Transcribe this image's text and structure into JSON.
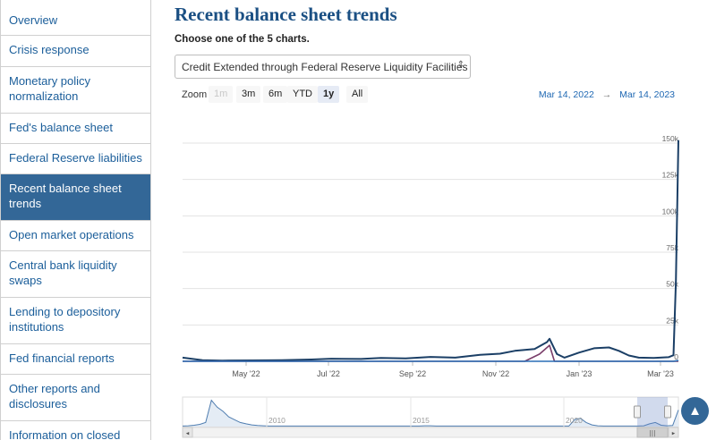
{
  "sidebar": {
    "items": [
      {
        "label": "Overview",
        "active": false
      },
      {
        "label": "Crisis response",
        "active": false
      },
      {
        "label": "Monetary policy normalization",
        "active": false
      },
      {
        "label": "Fed's balance sheet",
        "active": false
      },
      {
        "label": "Federal Reserve liabilities",
        "active": false
      },
      {
        "label": "Recent balance sheet trends",
        "active": true
      },
      {
        "label": "Open market operations",
        "active": false
      },
      {
        "label": "Central bank liquidity swaps",
        "active": false
      },
      {
        "label": "Lending to depository institutions",
        "active": false
      },
      {
        "label": "Fed financial reports",
        "active": false
      },
      {
        "label": "Other reports and disclosures",
        "active": false
      },
      {
        "label": "Information on closed",
        "active": false
      }
    ]
  },
  "main": {
    "title": "Recent balance sheet trends",
    "choose_label": "Choose one of the 5 charts.",
    "select": {
      "value": "Credit Extended through Federal Reserve Liquidity Facilities",
      "caret": "⇕"
    }
  },
  "range_selector": {
    "zoom_label": "Zoom",
    "buttons": [
      {
        "label": "1m",
        "state": "disabled"
      },
      {
        "label": "3m",
        "state": "normal"
      },
      {
        "label": "6m",
        "state": "normal"
      },
      {
        "label": "YTD",
        "state": "normal"
      },
      {
        "label": "1y",
        "state": "selected"
      },
      {
        "label": "All",
        "state": "normal"
      }
    ],
    "from": "Mar 14, 2022",
    "arrow": "→",
    "to": "Mar 14, 2023"
  },
  "chart_data": {
    "type": "line",
    "x_labels": [
      "May '22",
      "Jul '22",
      "Sep '22",
      "Nov '22",
      "Jan '23",
      "Mar '23"
    ],
    "y_ticks": [
      "0",
      "25k",
      "50k",
      "75k",
      "100k",
      "125k",
      "150k"
    ],
    "ylim": [
      0,
      150000
    ],
    "xlim": [
      "2022-03-14",
      "2023-03-14"
    ],
    "grid": true,
    "colors": {
      "series_a": "#1b3f66",
      "series_b": "#7a3e6a",
      "series_c": "#2a6fb5"
    },
    "series": [
      {
        "values": [
          [
            0,
            2500
          ],
          [
            0.04,
            800
          ],
          [
            0.08,
            500
          ],
          [
            0.14,
            600
          ],
          [
            0.2,
            800
          ],
          [
            0.26,
            1200
          ],
          [
            0.3,
            1800
          ],
          [
            0.36,
            1600
          ],
          [
            0.4,
            2300
          ],
          [
            0.45,
            2000
          ],
          [
            0.5,
            3000
          ],
          [
            0.55,
            2500
          ],
          [
            0.6,
            4500
          ],
          [
            0.64,
            5200
          ],
          [
            0.67,
            7200
          ],
          [
            0.71,
            8400
          ],
          [
            0.735,
            13200
          ],
          [
            0.74,
            15500
          ],
          [
            0.755,
            5000
          ],
          [
            0.77,
            2500
          ],
          [
            0.8,
            6000
          ],
          [
            0.83,
            9000
          ],
          [
            0.86,
            9500
          ],
          [
            0.88,
            7200
          ],
          [
            0.9,
            4000
          ],
          [
            0.92,
            2500
          ],
          [
            0.95,
            2300
          ],
          [
            0.98,
            2800
          ],
          [
            0.99,
            4200
          ],
          [
            0.995,
            55000
          ],
          [
            1.0,
            152000
          ]
        ]
      },
      {
        "values": [
          [
            0,
            0
          ],
          [
            0.69,
            0
          ],
          [
            0.72,
            5000
          ],
          [
            0.74,
            11000
          ],
          [
            0.75,
            0
          ],
          [
            1.0,
            0
          ]
        ]
      },
      {
        "values": [
          [
            0,
            0
          ],
          [
            0.99,
            0
          ],
          [
            1.0,
            600
          ]
        ]
      }
    ]
  },
  "navigator": {
    "labels": [
      "2010",
      "2015",
      "2020"
    ],
    "values": [
      0.02,
      0.03,
      0.05,
      0.08,
      0.15,
      0.95,
      0.7,
      0.55,
      0.35,
      0.25,
      0.15,
      0.1,
      0.06,
      0.04,
      0.03,
      0.02,
      0.02,
      0.02,
      0.02,
      0.02,
      0.02,
      0.02,
      0.02,
      0.02,
      0.02,
      0.02,
      0.02,
      0.02,
      0.02,
      0.02,
      0.02,
      0.02,
      0.02,
      0.02,
      0.02,
      0.02,
      0.02,
      0.02,
      0.02,
      0.02,
      0.02,
      0.02,
      0.03,
      0.03,
      0.02,
      0.02,
      0.02,
      0.02,
      0.02,
      0.02,
      0.02,
      0.02,
      0.02,
      0.02,
      0.02,
      0.02,
      0.02,
      0.02,
      0.02,
      0.02,
      0.02,
      0.02,
      0.02,
      0.02,
      0.02,
      0.02,
      0.02,
      0.02,
      0.25,
      0.3,
      0.15,
      0.06,
      0.03,
      0.02,
      0.02,
      0.02,
      0.02,
      0.02,
      0.02,
      0.02,
      0.03,
      0.1,
      0.15,
      0.05,
      0.03,
      0.04,
      0.6
    ],
    "scroll_left_arrow": "◂",
    "scroll_right_arrow": "▸",
    "scroll_grip": "|||"
  },
  "back_to_top": "▲"
}
